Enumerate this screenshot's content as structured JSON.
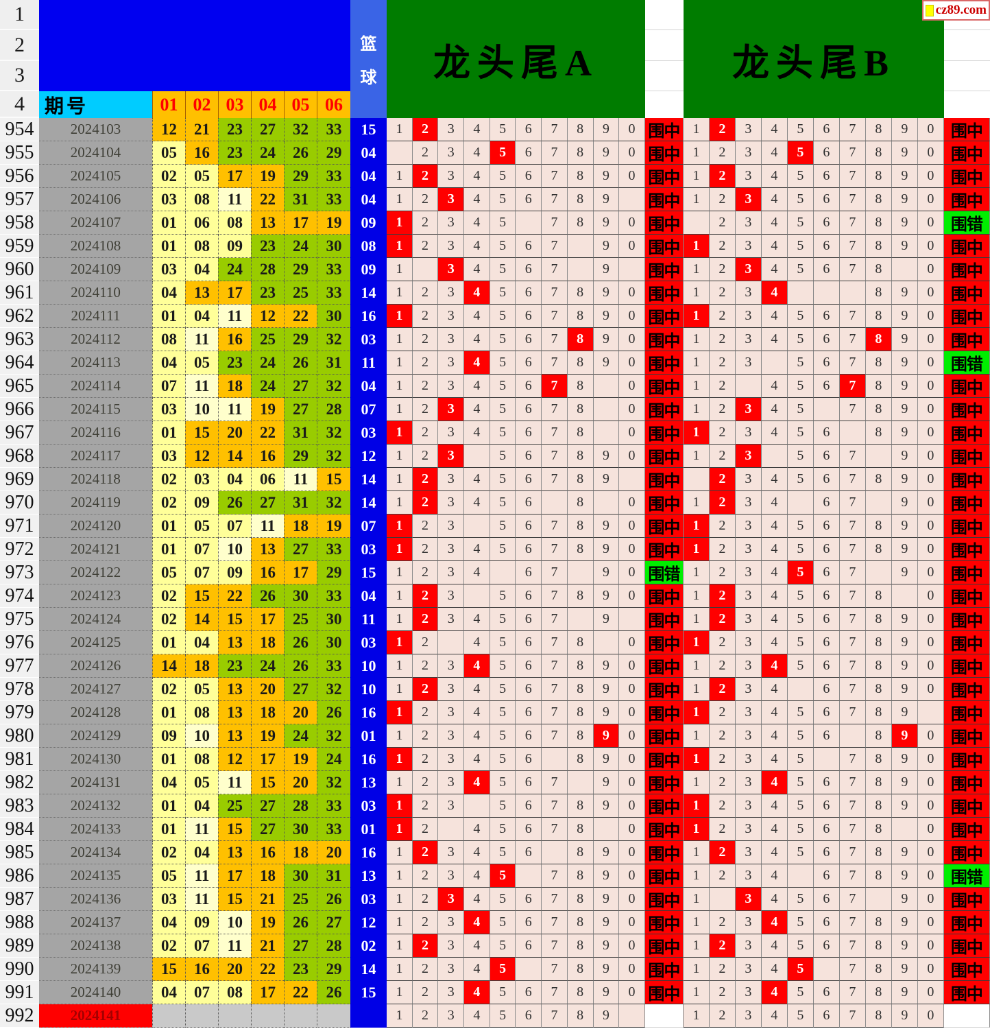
{
  "palette": {
    "header_blue": "#0000F0",
    "blue_col": "#3A64E6",
    "blue_cell": "#0000E6",
    "cyan_header": "#00CCFF",
    "orange_header": "#FFC000",
    "green_header": "#007C00",
    "ball_yellow_1to9": "#FFFF99",
    "ball_yellow_10to11": "#FFFFCC",
    "ball_orange_12to22": "#FFC000",
    "ball_green_23to33": "#99CC00",
    "digit_bg": "#F6E3DC",
    "highlight_red": "#FF0000",
    "badge_hit_bg": "#FF0000",
    "badge_miss_bg": "#00EE00",
    "period_gray": "#A5A5A5",
    "pending_red": "#FF0000"
  },
  "header": {
    "row_labels": [
      "1",
      "2",
      "3",
      "4"
    ],
    "period_label": "期号",
    "ball_cols": [
      "01",
      "02",
      "03",
      "04",
      "05",
      "06"
    ],
    "blue_label_top": "篮",
    "blue_label_bottom": "球",
    "section_a_title": "龙头尾A",
    "section_b_title": "龙头尾B",
    "logo_text": "cz89.com"
  },
  "grid": {
    "digit_order": [
      "1",
      "2",
      "3",
      "4",
      "5",
      "6",
      "7",
      "8",
      "9",
      "0"
    ],
    "badge_hit": "围中",
    "badge_miss": "围错"
  },
  "rows": [
    {
      "n": "954",
      "period": "2024103",
      "balls": [
        "12",
        "21",
        "23",
        "27",
        "32",
        "33"
      ],
      "blue": "15",
      "a": "nRnnnnnnnn",
      "ab": "hit",
      "b": "nRnnnnnnnn",
      "bb": "hit"
    },
    {
      "n": "955",
      "period": "2024104",
      "balls": [
        "05",
        "16",
        "23",
        "24",
        "26",
        "29"
      ],
      "blue": "04",
      "a": ".nnnRnnnnn",
      "ab": "hit",
      "b": "nnnnRnnnnn",
      "bb": "hit"
    },
    {
      "n": "956",
      "period": "2024105",
      "balls": [
        "02",
        "05",
        "17",
        "19",
        "29",
        "33"
      ],
      "blue": "04",
      "a": "nRnnnnnnnn",
      "ab": "hit",
      "b": "nRnnnnnnnn",
      "bb": "hit"
    },
    {
      "n": "957",
      "period": "2024106",
      "balls": [
        "03",
        "08",
        "11",
        "22",
        "31",
        "33"
      ],
      "blue": "04",
      "a": "nnRnnnnnn.",
      "ab": "hit",
      "b": "nnRnnnnnnn",
      "bb": "hit"
    },
    {
      "n": "958",
      "period": "2024107",
      "balls": [
        "01",
        "06",
        "08",
        "13",
        "17",
        "19"
      ],
      "blue": "09",
      "a": "Rnnnn.nnnn",
      "ab": "hit",
      "b": ".nnnnnnnnn",
      "bb": "miss"
    },
    {
      "n": "959",
      "period": "2024108",
      "balls": [
        "01",
        "08",
        "09",
        "23",
        "24",
        "30"
      ],
      "blue": "08",
      "a": "Rnnnnnn.nn",
      "ab": "hit",
      "b": "Rnnnnnnnnn",
      "bb": "hit"
    },
    {
      "n": "960",
      "period": "2024109",
      "balls": [
        "03",
        "04",
        "24",
        "28",
        "29",
        "33"
      ],
      "blue": "09",
      "a": "n.Rnnnn.n.",
      "ab": "hit",
      "b": "nnRnnnnn.n",
      "bb": "hit"
    },
    {
      "n": "961",
      "period": "2024110",
      "balls": [
        "04",
        "13",
        "17",
        "23",
        "25",
        "33"
      ],
      "blue": "14",
      "a": "nnnRnnnnnn",
      "ab": "hit",
      "b": "nnnR...nnn",
      "bb": "hit"
    },
    {
      "n": "962",
      "period": "2024111",
      "balls": [
        "01",
        "04",
        "11",
        "12",
        "22",
        "30"
      ],
      "blue": "16",
      "a": "Rnnnnnnnnn",
      "ab": "hit",
      "b": "Rnnnnnnnnn",
      "bb": "hit"
    },
    {
      "n": "963",
      "period": "2024112",
      "balls": [
        "08",
        "11",
        "16",
        "25",
        "29",
        "32"
      ],
      "blue": "03",
      "a": "nnnnnnnRnn",
      "ab": "hit",
      "b": "nnnnnnnRnn",
      "bb": "hit"
    },
    {
      "n": "964",
      "period": "2024113",
      "balls": [
        "04",
        "05",
        "23",
        "24",
        "26",
        "31"
      ],
      "blue": "11",
      "a": "nnnRnnnnnn",
      "ab": "hit",
      "b": "nnn.nnnnnn",
      "bb": "miss"
    },
    {
      "n": "965",
      "period": "2024114",
      "balls": [
        "07",
        "11",
        "18",
        "24",
        "27",
        "32"
      ],
      "blue": "04",
      "a": "nnnnnnRn.n",
      "ab": "hit",
      "b": "nn.nnnRnnn",
      "bb": "hit"
    },
    {
      "n": "966",
      "period": "2024115",
      "balls": [
        "03",
        "10",
        "11",
        "19",
        "27",
        "28"
      ],
      "blue": "07",
      "a": "nnRnnnnn.n",
      "ab": "hit",
      "b": "nnRnn.nnnn",
      "bb": "hit"
    },
    {
      "n": "967",
      "period": "2024116",
      "balls": [
        "01",
        "15",
        "20",
        "22",
        "31",
        "32"
      ],
      "blue": "03",
      "a": "Rnnnnnnn.n",
      "ab": "hit",
      "b": "Rnnnnn.nnn",
      "bb": "hit"
    },
    {
      "n": "968",
      "period": "2024117",
      "balls": [
        "03",
        "12",
        "14",
        "16",
        "29",
        "32"
      ],
      "blue": "12",
      "a": "nnR.nnnnnn",
      "ab": "hit",
      "b": "nnR.nnn.nn",
      "bb": "hit"
    },
    {
      "n": "969",
      "period": "2024118",
      "balls": [
        "02",
        "03",
        "04",
        "06",
        "11",
        "15"
      ],
      "blue": "14",
      "a": "nRnnnnnnn.",
      "ab": "hit",
      "b": ".Rnnnnnnnn",
      "bb": "hit"
    },
    {
      "n": "970",
      "period": "2024119",
      "balls": [
        "02",
        "09",
        "26",
        "27",
        "31",
        "32"
      ],
      "blue": "14",
      "a": "nRnnnn.n.n",
      "ab": "hit",
      "b": "nRnn.nn.nn",
      "bb": "hit"
    },
    {
      "n": "971",
      "period": "2024120",
      "balls": [
        "01",
        "05",
        "07",
        "11",
        "18",
        "19"
      ],
      "blue": "07",
      "a": "Rnn.nnnnnn",
      "ab": "hit",
      "b": "Rnnnnnnnnn",
      "bb": "hit"
    },
    {
      "n": "972",
      "period": "2024121",
      "balls": [
        "01",
        "07",
        "10",
        "13",
        "27",
        "33"
      ],
      "blue": "03",
      "a": "Rnnnnnnnnn",
      "ab": "hit",
      "b": "Rnnnnnnnnn",
      "bb": "hit"
    },
    {
      "n": "973",
      "period": "2024122",
      "balls": [
        "05",
        "07",
        "09",
        "16",
        "17",
        "29"
      ],
      "blue": "15",
      "a": "nnnn.nn.nn",
      "ab": "miss",
      "b": "nnnnRnn.nn",
      "bb": "hit"
    },
    {
      "n": "974",
      "period": "2024123",
      "balls": [
        "02",
        "15",
        "22",
        "26",
        "30",
        "33"
      ],
      "blue": "04",
      "a": "nRn.nnnnnn",
      "ab": "hit",
      "b": "nRnnnnnn.n",
      "bb": "hit"
    },
    {
      "n": "975",
      "period": "2024124",
      "balls": [
        "02",
        "14",
        "15",
        "17",
        "25",
        "30"
      ],
      "blue": "11",
      "a": "nRnnnnn.n.",
      "ab": "hit",
      "b": "nRnnnnnnnn",
      "bb": "hit"
    },
    {
      "n": "976",
      "period": "2024125",
      "balls": [
        "01",
        "04",
        "13",
        "18",
        "26",
        "30"
      ],
      "blue": "03",
      "a": "Rn.nnnnn.n",
      "ab": "hit",
      "b": "Rnnnnnnnnn",
      "bb": "hit"
    },
    {
      "n": "977",
      "period": "2024126",
      "balls": [
        "14",
        "18",
        "23",
        "24",
        "26",
        "33"
      ],
      "blue": "10",
      "a": "nnnRnnnnnn",
      "ab": "hit",
      "b": "nnnRnnnnnn",
      "bb": "hit"
    },
    {
      "n": "978",
      "period": "2024127",
      "balls": [
        "02",
        "05",
        "13",
        "20",
        "27",
        "32"
      ],
      "blue": "10",
      "a": "nRnnnnnnnn",
      "ab": "hit",
      "b": "nRnn.nnnnn",
      "bb": "hit"
    },
    {
      "n": "979",
      "period": "2024128",
      "balls": [
        "01",
        "08",
        "13",
        "18",
        "20",
        "26"
      ],
      "blue": "16",
      "a": "Rnnnnnnnnn",
      "ab": "hit",
      "b": "Rnnnnnnnn.",
      "bb": "hit"
    },
    {
      "n": "980",
      "period": "2024129",
      "balls": [
        "09",
        "10",
        "13",
        "19",
        "24",
        "32"
      ],
      "blue": "01",
      "a": "nnnnnnnnRn",
      "ab": "hit",
      "b": "nnnnnn.nRn",
      "bb": "hit"
    },
    {
      "n": "981",
      "period": "2024130",
      "balls": [
        "01",
        "08",
        "12",
        "17",
        "19",
        "24"
      ],
      "blue": "16",
      "a": "Rnnnnn.nnn",
      "ab": "hit",
      "b": "Rnnnn.nnnn",
      "bb": "hit"
    },
    {
      "n": "982",
      "period": "2024131",
      "balls": [
        "04",
        "05",
        "11",
        "15",
        "20",
        "32"
      ],
      "blue": "13",
      "a": "nnnRnnn.nn",
      "ab": "hit",
      "b": "nnnRnnnnnn",
      "bb": "hit"
    },
    {
      "n": "983",
      "period": "2024132",
      "balls": [
        "01",
        "04",
        "25",
        "27",
        "28",
        "33"
      ],
      "blue": "03",
      "a": "Rnn.nnnnnn",
      "ab": "hit",
      "b": "Rnnnnnnnnn",
      "bb": "hit"
    },
    {
      "n": "984",
      "period": "2024133",
      "balls": [
        "01",
        "11",
        "15",
        "27",
        "30",
        "33"
      ],
      "blue": "01",
      "a": "Rn.nnnnn.n",
      "ab": "hit",
      "b": "Rnnnnnnn.n",
      "bb": "hit"
    },
    {
      "n": "985",
      "period": "2024134",
      "balls": [
        "02",
        "04",
        "13",
        "16",
        "18",
        "20"
      ],
      "blue": "16",
      "a": "nRnnnn.nnn",
      "ab": "hit",
      "b": "nRnnnnnnnn",
      "bb": "hit"
    },
    {
      "n": "986",
      "period": "2024135",
      "balls": [
        "05",
        "11",
        "17",
        "18",
        "30",
        "31"
      ],
      "blue": "13",
      "a": "nnnnR.nnnn",
      "ab": "hit",
      "b": "nnnn.nnnnn",
      "bb": "miss"
    },
    {
      "n": "987",
      "period": "2024136",
      "balls": [
        "03",
        "11",
        "15",
        "21",
        "25",
        "26"
      ],
      "blue": "03",
      "a": "nnRnnnnnnn",
      "ab": "hit",
      "b": "n.Rnnnn.nn",
      "bb": "hit"
    },
    {
      "n": "988",
      "period": "2024137",
      "balls": [
        "04",
        "09",
        "10",
        "19",
        "26",
        "27"
      ],
      "blue": "12",
      "a": "nnnRnnnnnn",
      "ab": "hit",
      "b": "nnnRnnnnnn",
      "bb": "hit"
    },
    {
      "n": "989",
      "period": "2024138",
      "balls": [
        "02",
        "07",
        "11",
        "21",
        "27",
        "28"
      ],
      "blue": "02",
      "a": "nRnnnnnnnn",
      "ab": "hit",
      "b": "nRnnnnnnnn",
      "bb": "hit"
    },
    {
      "n": "990",
      "period": "2024139",
      "balls": [
        "15",
        "16",
        "20",
        "22",
        "23",
        "29"
      ],
      "blue": "14",
      "a": "nnnnR.nnnn",
      "ab": "hit",
      "b": "nnnnR.nnnn",
      "bb": "hit"
    },
    {
      "n": "991",
      "period": "2024140",
      "balls": [
        "04",
        "07",
        "08",
        "17",
        "22",
        "26"
      ],
      "blue": "15",
      "a": "nnnRnnnnnn",
      "ab": "hit",
      "b": "nnnRnnnnnn",
      "bb": "hit"
    },
    {
      "n": "992",
      "period": "2024141",
      "balls": [],
      "blue": "",
      "pending": true,
      "a": "nnnnnnnnn.",
      "ab": "none",
      "b": "nnnnnnnnnn",
      "bb": "none"
    }
  ]
}
